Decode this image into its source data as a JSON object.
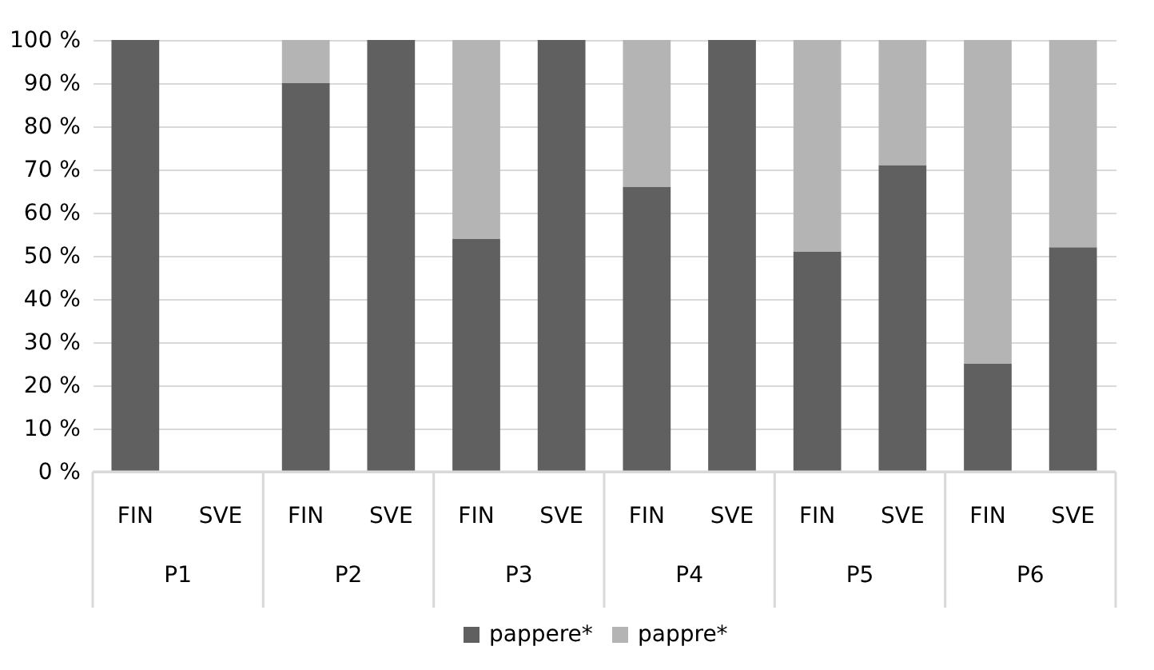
{
  "chart_data": {
    "type": "bar",
    "stacked": true,
    "categories": [
      "FIN",
      "SVE",
      "FIN",
      "SVE",
      "FIN",
      "SVE",
      "FIN",
      "SVE",
      "FIN",
      "SVE",
      "FIN",
      "SVE"
    ],
    "annotations": [
      "P1",
      "P2",
      "P3",
      "P4",
      "P5",
      "P6"
    ],
    "series": [
      {
        "name": "pappere*",
        "color": "#606060",
        "values": [
          100,
          0,
          90,
          100,
          54,
          100,
          66,
          100,
          51,
          71,
          25,
          52
        ]
      },
      {
        "name": "pappre*",
        "color": "#b4b4b4",
        "values": [
          0,
          0,
          10,
          0,
          46,
          0,
          34,
          0,
          49,
          29,
          75,
          48
        ]
      }
    ],
    "ylim": [
      0,
      100
    ],
    "yticks": [
      {
        "value": 0,
        "label": "0 %"
      },
      {
        "value": 10,
        "label": "10 %"
      },
      {
        "value": 20,
        "label": "20 %"
      },
      {
        "value": 30,
        "label": "30 %"
      },
      {
        "value": 40,
        "label": "40 %"
      },
      {
        "value": 50,
        "label": "50 %"
      },
      {
        "value": 60,
        "label": "60 %"
      },
      {
        "value": 70,
        "label": "70 %"
      },
      {
        "value": 80,
        "label": "80 %"
      },
      {
        "value": 90,
        "label": "90 %"
      },
      {
        "value": 100,
        "label": "100 %"
      }
    ],
    "grid": "y",
    "legend": "bottom"
  }
}
